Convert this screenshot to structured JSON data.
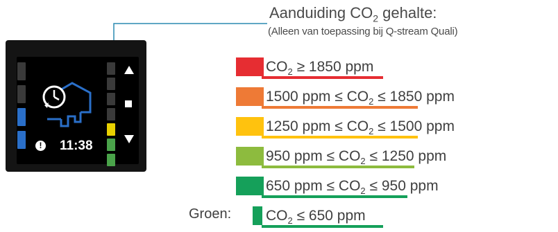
{
  "title": {
    "prefix": "Aanduiding CO",
    "sub": "2",
    "suffix": " gehalte:"
  },
  "subtitle": "(Alleen van toepassing bij Q-stream Quali)",
  "device": {
    "time": "11:38",
    "info_glyph": "!",
    "icons": [
      "clock-icon",
      "house-icon",
      "airflow-icon",
      "arrow-up-icon",
      "stop-icon",
      "arrow-down-icon",
      "info-icon"
    ],
    "left_bars": [
      "#3a3a3a",
      "#3a3a3a",
      "#2a6fc9",
      "#2a6fc9"
    ],
    "right_bars": [
      "#3a3a3a",
      "#3a3a3a",
      "#3a3a3a",
      "#3a3a3a",
      "#e8d000",
      "#4aa34a",
      "#4aa34a"
    ]
  },
  "levels": [
    {
      "color": "#e62d32",
      "before": "CO",
      "sub": "2",
      "after": " ≥ 1850 ppm"
    },
    {
      "color": "#ee7a36",
      "before": "1500 ppm ≤ CO",
      "sub": "2",
      "after": " ≤ 1850 ppm"
    },
    {
      "color": "#ffc20e",
      "before": "1250 ppm ≤ CO",
      "sub": "2",
      "after": " ≤ 1500 ppm"
    },
    {
      "color": "#8dbb3e",
      "before": "950 ppm ≤ CO",
      "sub": "2",
      "after": " ≤ 1250 ppm"
    },
    {
      "color": "#15a05a",
      "before": "650 ppm ≤ CO",
      "sub": "2",
      "after": " ≤ 950 ppm"
    },
    {
      "color": "#15a05a",
      "before": "CO",
      "sub": "2",
      "after": " ≤ 650 ppm"
    }
  ],
  "groen_label": "Groen:"
}
